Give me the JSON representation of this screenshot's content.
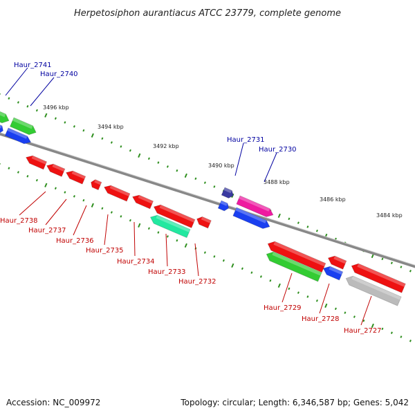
{
  "title": "Herpetosiphon aurantiacus ATCC 23779, complete genome",
  "footer": {
    "accession": "Accession: NC_009972",
    "topology": "Topology: circular; Length: 6,346,587 bp; Genes: 5,042"
  },
  "colors": {
    "backbone": "#888888",
    "tick": "#2f8f1f",
    "forward_label": "#0000a0",
    "reverse_label": "#c00000",
    "red": "#ee1111",
    "blue": "#1a3ff0",
    "green": "#33cc33",
    "teal": "#22e8a0",
    "magenta": "#ee1aa0",
    "navy": "#3a3aa0",
    "gray": "#bbbbbb"
  },
  "scale_labels": [
    {
      "text": "3496 kbp"
    },
    {
      "text": "3494 kbp"
    },
    {
      "text": "3492 kbp"
    },
    {
      "text": "3490 kbp"
    },
    {
      "text": "3488 kbp"
    },
    {
      "text": "3486 kbp"
    },
    {
      "text": "3484 kbp"
    }
  ],
  "gene_labels": [
    {
      "text": "Haur_2741",
      "strand": "forward"
    },
    {
      "text": "Haur_2740",
      "strand": "forward"
    },
    {
      "text": "Haur_2731",
      "strand": "forward"
    },
    {
      "text": "Haur_2730",
      "strand": "forward"
    },
    {
      "text": "Haur_2738",
      "strand": "reverse"
    },
    {
      "text": "Haur_2737",
      "strand": "reverse"
    },
    {
      "text": "Haur_2736",
      "strand": "reverse"
    },
    {
      "text": "Haur_2735",
      "strand": "reverse"
    },
    {
      "text": "Haur_2734",
      "strand": "reverse"
    },
    {
      "text": "Haur_2733",
      "strand": "reverse"
    },
    {
      "text": "Haur_2732",
      "strand": "reverse"
    },
    {
      "text": "Haur_2729",
      "strand": "reverse"
    },
    {
      "text": "Haur_2728",
      "strand": "reverse"
    },
    {
      "text": "Haur_2727",
      "strand": "reverse"
    }
  ]
}
